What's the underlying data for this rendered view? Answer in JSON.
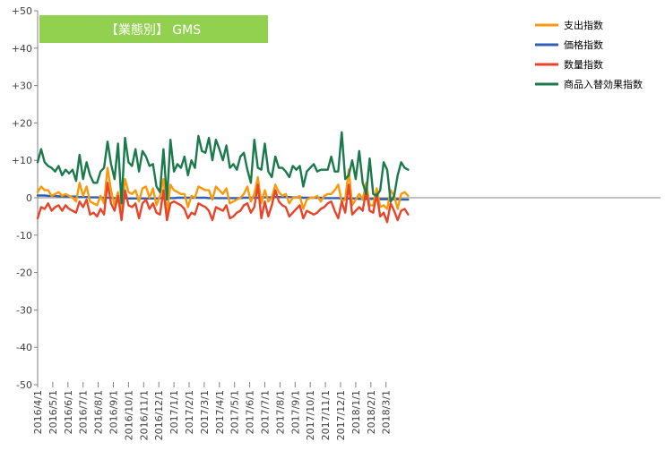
{
  "chart_data": {
    "type": "line",
    "title": "【業態別】 GMS",
    "xlabel": "",
    "ylabel": "",
    "ylim": [
      -50,
      50
    ],
    "yticks": [
      "+50",
      "+40",
      "+30",
      "+20",
      "+10",
      "0",
      "-10",
      "-20",
      "-30",
      "-40",
      "-50"
    ],
    "grid": false,
    "legend_position": "top-right",
    "x_tick_labels": [
      "2016/4/1",
      "2016/5/1",
      "2016/6/1",
      "2016/7/1",
      "2016/8/1",
      "2016/9/1",
      "2016/10/1",
      "2016/11/1",
      "2016/12/1",
      "2017/1/1",
      "2017/2/1",
      "2017/3/1",
      "2017/4/1",
      "2017/5/1",
      "2017/6/1",
      "2017/7/1",
      "2017/8/1",
      "2017/9/1",
      "2017/10/1",
      "2017/11/1",
      "2017/12/1",
      "2018/1/1",
      "2018/2/1",
      "2018/3/1"
    ],
    "x_start": "2016/4/1",
    "x_step": "1 week",
    "series": [
      {
        "name": "支出指数",
        "color": "#f79a0d",
        "values": [
          1.5,
          3,
          2,
          2,
          0.5,
          1,
          1.5,
          0.5,
          1,
          0.5,
          0,
          -1,
          4,
          0.5,
          3,
          -1,
          -1.5,
          -2,
          0.5,
          -1.5,
          8,
          2,
          -2,
          1.5,
          -4,
          5,
          1.5,
          1,
          2,
          -1,
          2.5,
          3,
          0,
          2.5,
          -2,
          0.5,
          5,
          -4,
          3.5,
          2,
          1.5,
          1,
          1,
          -2.5,
          0.5,
          0,
          3,
          2.5,
          2,
          2,
          -0.5,
          3,
          2,
          1,
          2.5,
          -1.5,
          -1,
          -0.5,
          0,
          1,
          3,
          -1,
          1,
          5.5,
          -1.5,
          2,
          -1,
          0,
          3.5,
          1.5,
          0.5,
          1,
          -1.5,
          0,
          0,
          0.5,
          -3,
          -0.5,
          0,
          0,
          0.5,
          -1,
          0.5,
          1,
          1,
          2,
          3.5,
          -1,
          -0.5,
          7.5,
          -2,
          -0.5,
          1,
          -0.5,
          4,
          -2,
          -2,
          2.5,
          -2.5,
          -2,
          -3,
          2,
          0.5,
          -3,
          1,
          1.5,
          0.5
        ]
      },
      {
        "name": "価格指数",
        "color": "#2f5fb4",
        "values": [
          0.6,
          0.6,
          0.6,
          0.5,
          0.5,
          0.5,
          0.4,
          0.4,
          0.4,
          0.3,
          0.3,
          0.3,
          0.2,
          0.2,
          0.2,
          0.1,
          0.1,
          0.1,
          0,
          0,
          0,
          0,
          -0.1,
          -0.1,
          -0.1,
          -0.1,
          -0.2,
          -0.2,
          -0.2,
          -0.2,
          -0.2,
          -0.2,
          -0.2,
          -0.2,
          -0.2,
          -0.1,
          -0.1,
          -0.1,
          -0.1,
          -0.1,
          0,
          0,
          0,
          0,
          0,
          0,
          0,
          0,
          0,
          -0.1,
          -0.1,
          -0.1,
          -0.1,
          -0.1,
          -0.1,
          -0.1,
          -0.1,
          -0.1,
          -0.1,
          0,
          0,
          0,
          0,
          0,
          0.1,
          0.1,
          0.1,
          0.1,
          0.2,
          0.2,
          0.2,
          0.2,
          0.2,
          0.1,
          0.1,
          0.1,
          0,
          0,
          0,
          0,
          0,
          0,
          -0.1,
          -0.1,
          -0.1,
          -0.1,
          -0.1,
          -0.2,
          -0.2,
          -0.2,
          -0.2,
          -0.2,
          -0.3,
          -0.3,
          -0.3,
          -0.3,
          -0.3,
          -0.3,
          -0.4,
          -0.4,
          -0.4,
          -0.4,
          -0.4,
          -0.4,
          -0.5,
          -0.5,
          -0.5
        ]
      },
      {
        "name": "数量指数",
        "color": "#e8442a",
        "values": [
          -5.5,
          -2.5,
          -3,
          -1.5,
          -3.5,
          -2.5,
          -2,
          -3.5,
          -2,
          -3,
          -3.5,
          -4,
          -1,
          -2.5,
          -0.5,
          -4.5,
          -4,
          -5,
          -3,
          -4.5,
          4,
          -1.5,
          -3.5,
          0.5,
          -6,
          2,
          -2,
          -2.5,
          -1.5,
          -5.5,
          -1.5,
          -0.5,
          -3,
          -1.5,
          -4,
          -4.5,
          2,
          -6,
          -1.5,
          -1,
          -1.5,
          -2,
          -3,
          -5.5,
          -4,
          -4.5,
          -1.5,
          -2,
          -2.5,
          -3.5,
          -6,
          -2.5,
          -3,
          -3.5,
          -2,
          -5.5,
          -5,
          -4,
          -3.5,
          -2,
          -1.5,
          -4,
          -2.5,
          3.5,
          -5.5,
          -1,
          -5,
          -2,
          2,
          -1,
          -2,
          -2.5,
          -5,
          -4,
          -3,
          -2,
          -5.5,
          -3.5,
          -4,
          -4.5,
          -4,
          -3,
          -2.5,
          -1.5,
          -1,
          -3.5,
          -5.5,
          -1,
          -4,
          3.5,
          -4.5,
          -3.5,
          -2.5,
          -3.5,
          2,
          -3.5,
          -4,
          1,
          -5,
          -4,
          -6.5,
          -1.5,
          -3.5,
          -6,
          -3.5,
          -3,
          -4.5
        ]
      },
      {
        "name": "商品入替効果指数",
        "color": "#1a7a4b",
        "values": [
          9.5,
          13,
          9.5,
          8.5,
          8,
          7,
          8.5,
          6,
          7.5,
          6.5,
          7.5,
          4.5,
          11.5,
          5,
          9.5,
          6,
          4,
          4,
          7,
          8,
          15,
          9,
          5,
          14.5,
          -1.5,
          16,
          9.5,
          8.5,
          13,
          7,
          12.5,
          11,
          8.5,
          9,
          3,
          1.5,
          13,
          -0.5,
          15.5,
          7,
          9,
          8,
          11,
          6,
          10,
          8,
          16.5,
          12.5,
          12,
          16,
          10,
          15.5,
          13,
          10,
          14,
          8,
          9,
          7.5,
          11,
          12,
          7.5,
          4,
          15.5,
          8,
          7.5,
          14.5,
          7,
          5.5,
          11,
          8,
          8,
          7,
          5.5,
          8.5,
          7.5,
          8.5,
          3,
          7,
          8,
          9,
          7,
          7.5,
          7.5,
          7.5,
          11,
          7,
          7,
          17.5,
          5,
          6,
          10,
          5,
          12.5,
          4,
          1,
          10.5,
          1,
          0.5,
          2,
          9.5,
          7.5,
          -1,
          0.5,
          6,
          9.5,
          8,
          7.5
        ]
      }
    ]
  }
}
